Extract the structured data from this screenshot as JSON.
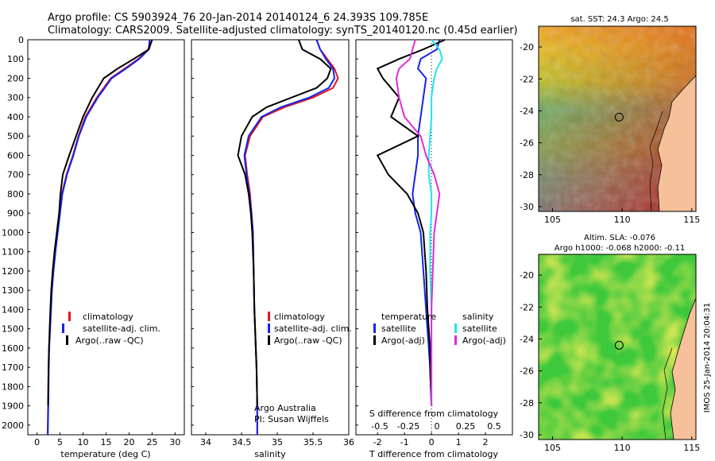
{
  "title": {
    "line1": "Argo profile: CS 5903924_76 20-Jan-2014 20140124_6 24.393S 109.785E",
    "line2": "Climatology: CARS2009. Satellite-adjusted climatology: synTS_20140120.nc (0.45d earlier)"
  },
  "colors": {
    "climatology": "#e8141e",
    "satellite": "#1424e8",
    "argo": "#000000",
    "satellite_s": "#22e5ee",
    "argo_s": "#e02cd8"
  },
  "depth_ticks": [
    0,
    100,
    200,
    300,
    400,
    500,
    600,
    700,
    800,
    900,
    1000,
    1100,
    1200,
    1300,
    1400,
    1500,
    1600,
    1700,
    1800,
    1900,
    2000
  ],
  "chart_data": [
    {
      "type": "line",
      "xlabel": "temperature (deg C)",
      "ylabel": "",
      "xlim": [
        -2,
        32
      ],
      "ylim": [
        2050,
        0
      ],
      "xticks": [
        0,
        5,
        10,
        15,
        20,
        25,
        30
      ],
      "legend": [
        "climatology",
        "satellite-adj. clim.",
        "Argo(..raw -QC)"
      ],
      "series": [
        {
          "name": "climatology",
          "x": [
            24.5,
            24.2,
            22,
            19,
            16,
            13,
            10.5,
            9,
            7.8,
            6.4,
            5.4,
            4.9,
            4.4,
            3.9,
            3.5,
            3.2,
            3.0,
            2.8,
            2.6,
            2.5,
            2.4,
            2.3
          ],
          "y": [
            0,
            50,
            100,
            150,
            200,
            300,
            400,
            500,
            600,
            700,
            800,
            900,
            1000,
            1100,
            1200,
            1300,
            1400,
            1500,
            1600,
            1700,
            1900,
            2050
          ]
        },
        {
          "name": "satellite-adj. clim.",
          "x": [
            24.5,
            24.3,
            22.2,
            19.3,
            16.2,
            13.2,
            10.7,
            9.1,
            7.9,
            6.5,
            5.5,
            5.0,
            4.5,
            4.0,
            3.6,
            3.25,
            3.05,
            2.85,
            2.65,
            2.55,
            2.45,
            2.35
          ],
          "y": [
            0,
            50,
            100,
            150,
            200,
            300,
            400,
            500,
            600,
            700,
            800,
            900,
            1000,
            1100,
            1200,
            1300,
            1400,
            1500,
            1600,
            1700,
            1900,
            2050
          ]
        },
        {
          "name": "Argo(..raw -QC)",
          "x": [
            25,
            24.3,
            21,
            17.5,
            14.5,
            12,
            10,
            8.5,
            7,
            5.6,
            5.1,
            4.8,
            4.3,
            3.8,
            3.4,
            3.1,
            2.9,
            2.75,
            2.6,
            2.5,
            2.4
          ],
          "y": [
            0,
            50,
            100,
            150,
            200,
            300,
            400,
            500,
            600,
            700,
            800,
            900,
            1000,
            1100,
            1200,
            1300,
            1400,
            1500,
            1600,
            1700,
            1900
          ]
        }
      ]
    },
    {
      "type": "line",
      "xlabel": "salinity",
      "ylabel": "",
      "xlim": [
        33.8,
        36.0
      ],
      "ylim": [
        2050,
        0
      ],
      "xticks": [
        34,
        34.5,
        35,
        35.5,
        36
      ],
      "legend": [
        "climatology",
        "satellite-adj. clim.",
        "Argo(..raw -QC)"
      ],
      "annotation": [
        "Argo Australia",
        "PI: Susan Wijffels"
      ],
      "series": [
        {
          "name": "climatology",
          "x": [
            35.55,
            35.6,
            35.7,
            35.8,
            35.85,
            35.78,
            35.5,
            35.1,
            34.8,
            34.62,
            34.55,
            34.58,
            34.62,
            34.64,
            34.66,
            34.67,
            34.68,
            34.69,
            34.7,
            34.71,
            34.72,
            34.72
          ],
          "y": [
            0,
            50,
            100,
            150,
            200,
            250,
            300,
            350,
            400,
            500,
            600,
            700,
            800,
            900,
            1000,
            1200,
            1400,
            1500,
            1600,
            1700,
            1900,
            2050
          ]
        },
        {
          "name": "satellite-adj. clim.",
          "x": [
            35.55,
            35.6,
            35.68,
            35.78,
            35.8,
            35.72,
            35.45,
            35.05,
            34.78,
            34.6,
            34.54,
            34.57,
            34.61,
            34.64,
            34.66,
            34.67,
            34.68,
            34.69,
            34.7,
            34.71,
            34.72,
            34.72
          ],
          "y": [
            0,
            50,
            100,
            150,
            200,
            250,
            300,
            350,
            400,
            500,
            600,
            700,
            800,
            900,
            1000,
            1200,
            1400,
            1500,
            1600,
            1700,
            1900,
            2050
          ]
        },
        {
          "name": "Argo(..raw -QC)",
          "x": [
            35.3,
            35.35,
            35.6,
            35.75,
            35.7,
            35.55,
            35.2,
            34.85,
            34.65,
            34.5,
            34.45,
            34.55,
            34.6,
            34.63,
            34.65,
            34.67,
            34.68,
            34.69,
            34.7,
            34.71,
            34.72
          ],
          "y": [
            0,
            50,
            100,
            150,
            200,
            250,
            300,
            350,
            400,
            500,
            600,
            700,
            800,
            900,
            1000,
            1200,
            1400,
            1500,
            1600,
            1700,
            1900
          ]
        }
      ]
    },
    {
      "type": "line",
      "xlabel": "T difference from climatology",
      "xlabel_top": "S difference from climatology",
      "ylabel": "",
      "xlim": [
        -2.8,
        3.0
      ],
      "ylim": [
        2050,
        0
      ],
      "xticks": [
        -2,
        -1,
        0,
        1,
        2
      ],
      "xticklabels_top": [
        "-0.5",
        "-0.25",
        "0",
        "0.25",
        "0.5"
      ],
      "legend_left_title": "temperature",
      "legend_right_title": "salinity",
      "legend": [
        "satellite",
        "Argo(-adj)",
        "satellite",
        "Argo(-adj)"
      ],
      "series": [
        {
          "name": "satellite",
          "x": [
            0.3,
            0.2,
            -0.4,
            -0.5,
            -0.2,
            -0.3,
            -0.4,
            -0.5,
            -0.5,
            -0.6,
            -0.7,
            -0.6,
            -0.4,
            -0.3,
            -0.2,
            -0.15,
            -0.1,
            -0.05,
            0
          ],
          "y": [
            0,
            50,
            100,
            150,
            200,
            300,
            400,
            500,
            600,
            700,
            800,
            900,
            1000,
            1200,
            1400,
            1500,
            1600,
            1700,
            1900
          ]
        },
        {
          "name": "Argo(-adj)",
          "x": [
            0.5,
            -0.3,
            -1.2,
            -2.0,
            -1.8,
            -1.2,
            -1.5,
            -0.5,
            -2.0,
            -1.6,
            -0.9,
            -0.5,
            -0.3,
            -0.2,
            -0.15,
            -0.1,
            -0.05,
            -0.05,
            0
          ],
          "y": [
            0,
            50,
            100,
            150,
            200,
            300,
            400,
            500,
            600,
            700,
            800,
            900,
            1000,
            1200,
            1400,
            1500,
            1600,
            1700,
            1900
          ]
        },
        {
          "name": "satellite",
          "x": [
            0,
            0.3,
            0.4,
            0.2,
            0.1,
            0.0,
            0.0,
            -0.05,
            -0.1,
            -0.1,
            0.0,
            0.0,
            -0.05,
            -0.05,
            0,
            0,
            0,
            0,
            0
          ],
          "y": [
            0,
            50,
            100,
            150,
            200,
            300,
            400,
            500,
            600,
            700,
            800,
            900,
            1000,
            1200,
            1400,
            1500,
            1600,
            1700,
            1900
          ]
        },
        {
          "name": "Argo(-adj)",
          "x": [
            -0.6,
            -0.7,
            -0.8,
            -1.2,
            -1.3,
            -1.2,
            -1.0,
            -0.4,
            -0.2,
            0.1,
            0.3,
            0.2,
            0.1,
            0.05,
            0,
            0,
            0,
            0,
            0
          ],
          "y": [
            0,
            50,
            100,
            150,
            200,
            300,
            400,
            500,
            600,
            700,
            800,
            900,
            1000,
            1200,
            1400,
            1500,
            1600,
            1700,
            1900
          ]
        }
      ]
    },
    {
      "type": "heatmap",
      "title": "sat. SST: 24.3 Argo: 24.5",
      "xticks": [
        105,
        110,
        115
      ],
      "yticks": [
        -20,
        -22,
        -24,
        -26,
        -28,
        -30
      ],
      "xlim": [
        104,
        115.3
      ],
      "ylim": [
        -30.3,
        -18.7
      ],
      "marker": {
        "x": 109.785,
        "y": -24.393
      }
    },
    {
      "type": "heatmap",
      "title": "Altim. SLA: -0.076",
      "subtitle": "Argo h1000: -0.068 h2000: -0.11",
      "xticks": [
        105,
        110,
        115
      ],
      "yticks": [
        -20,
        -22,
        -24,
        -26,
        -28,
        -30
      ],
      "xlim": [
        104,
        115.3
      ],
      "ylim": [
        -30.3,
        -18.7
      ],
      "marker": {
        "x": 109.785,
        "y": -24.393
      },
      "side_label": "IMOS 25-Jan-2014 20:04:31"
    }
  ]
}
